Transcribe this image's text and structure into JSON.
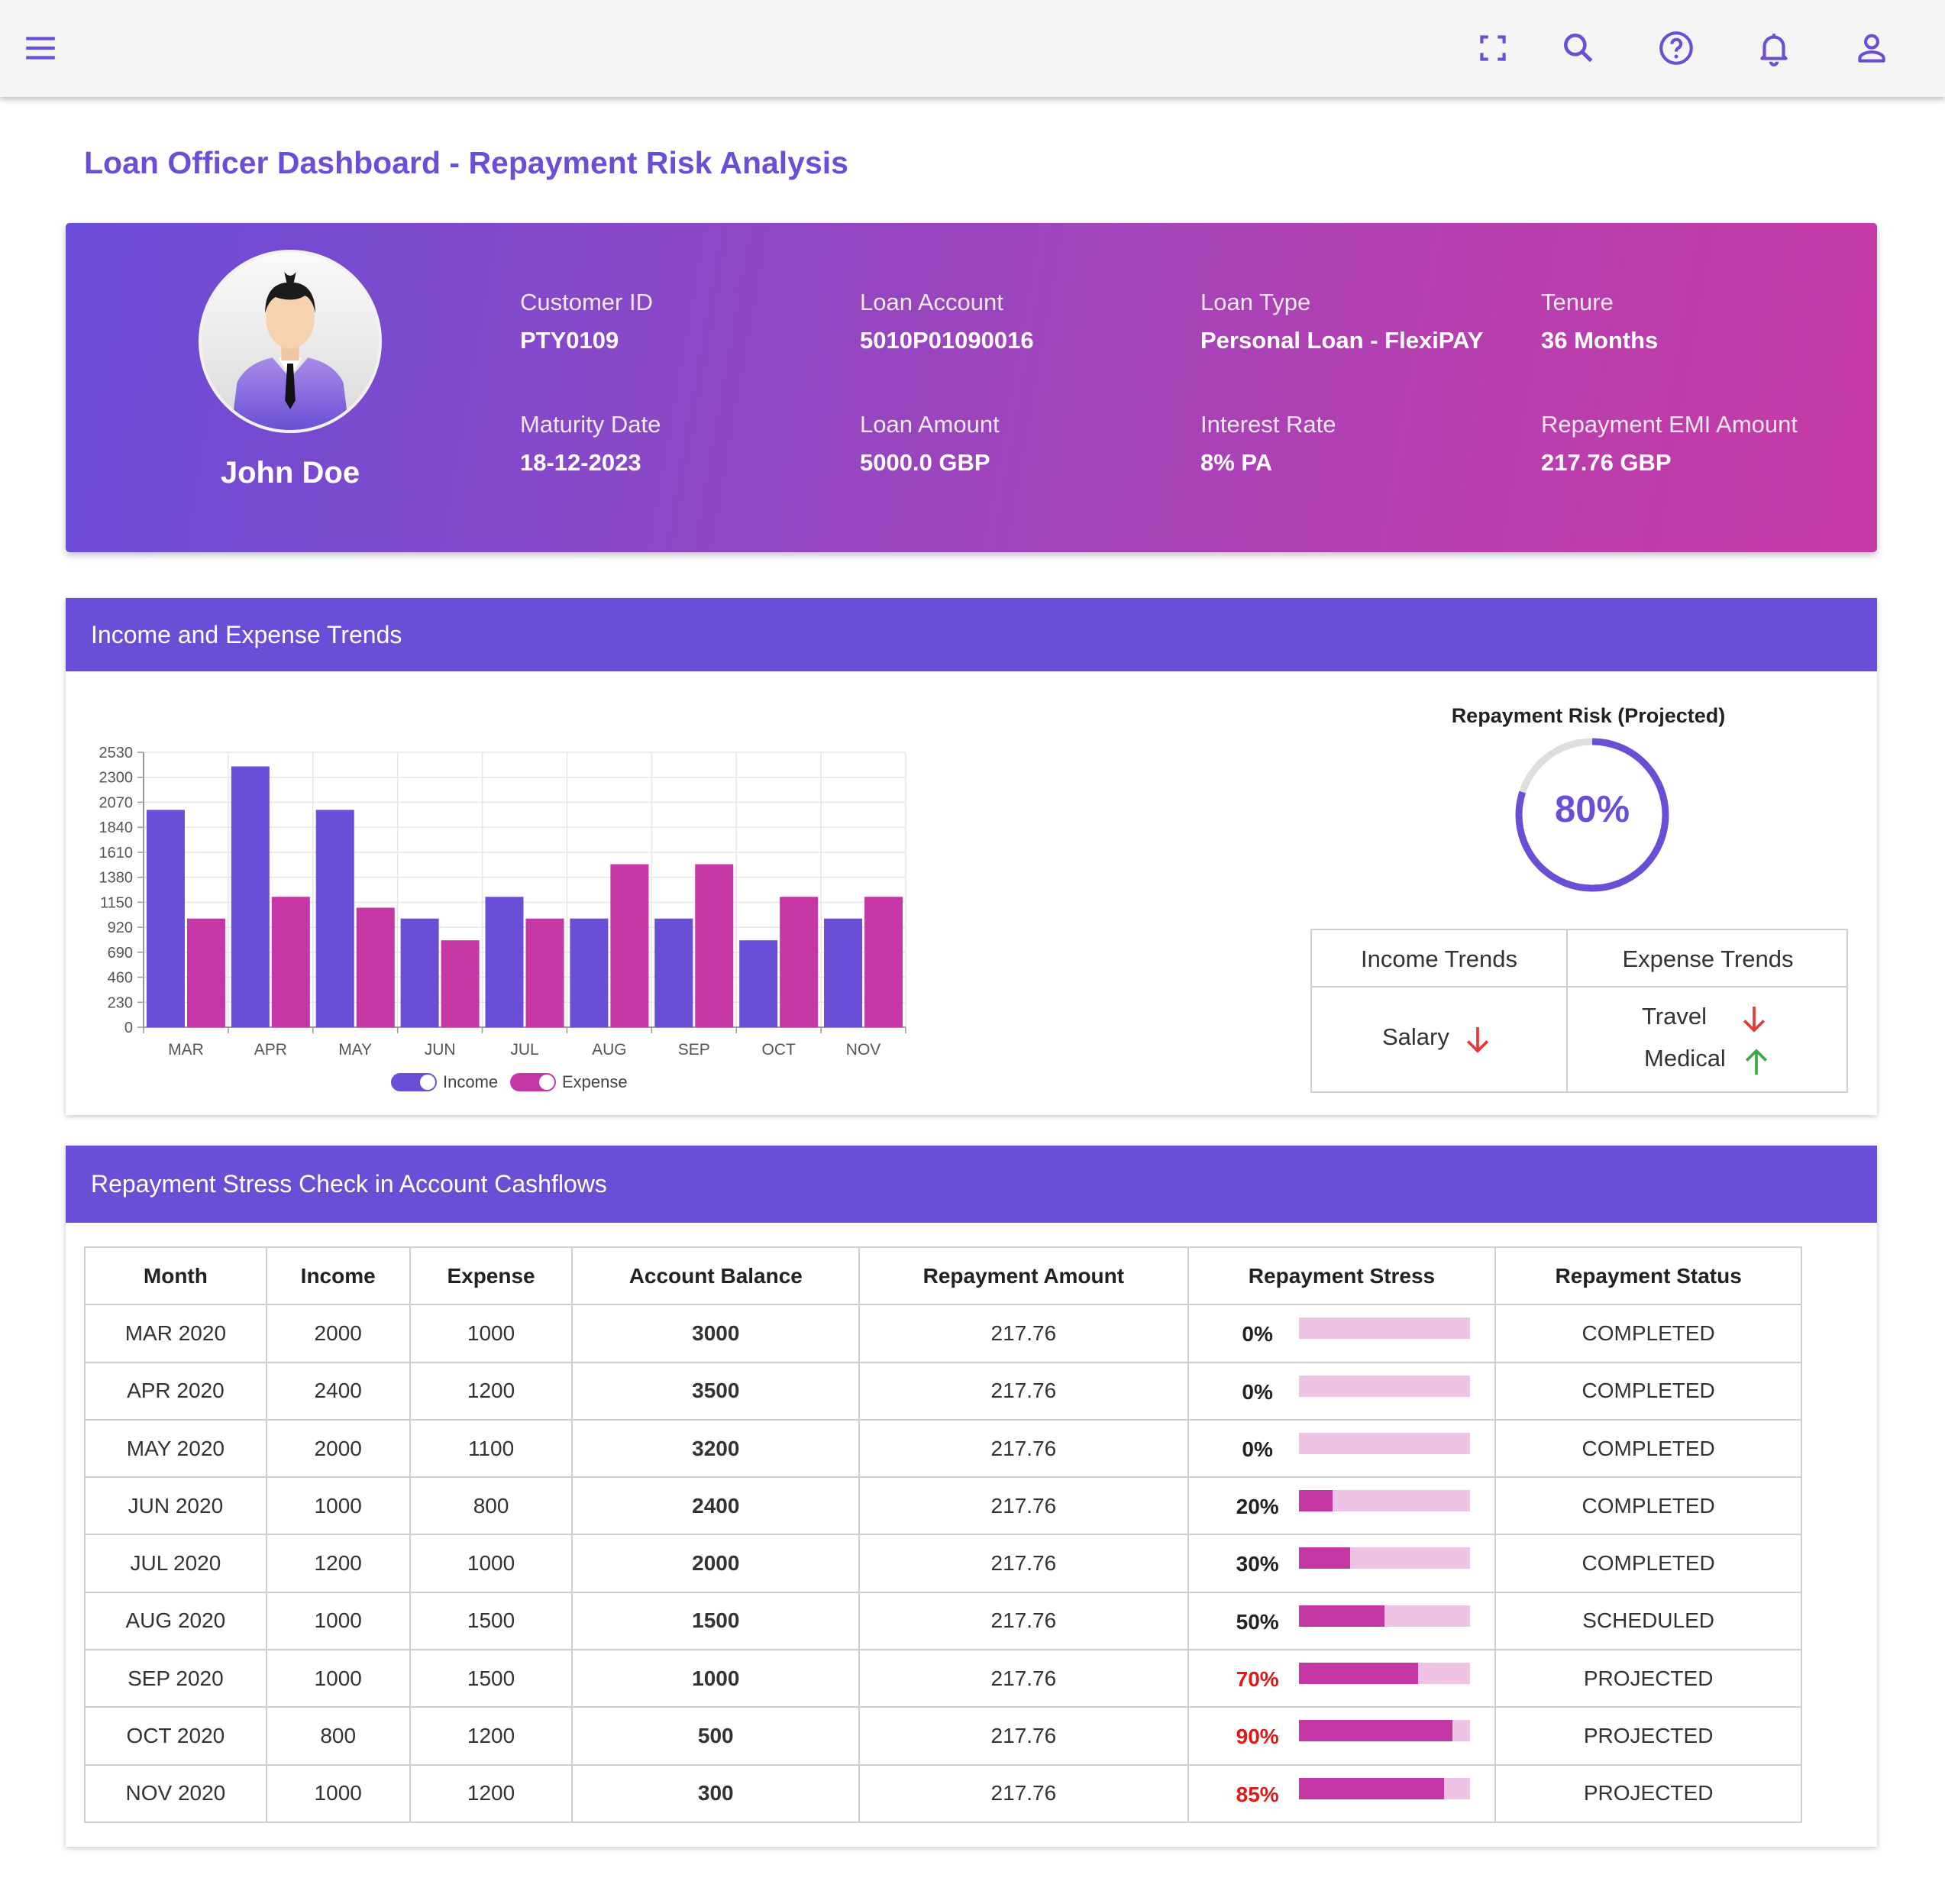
{
  "header": {
    "icons": [
      "menu-icon",
      "fullscreen-icon",
      "search-icon",
      "help-icon",
      "notifications-icon",
      "account-icon"
    ]
  },
  "page_title": "Loan Officer Dashboard - Repayment Risk Analysis",
  "profile": {
    "name": "John Doe",
    "fields": [
      {
        "label": "Customer ID",
        "value": "PTY0109"
      },
      {
        "label": "Loan Account",
        "value": "5010P01090016"
      },
      {
        "label": "Loan Type",
        "value": "Personal Loan - FlexiPAY"
      },
      {
        "label": "Tenure",
        "value": "36 Months"
      },
      {
        "label": "Maturity Date",
        "value": "18-12-2023"
      },
      {
        "label": "Loan Amount",
        "value": "5000.0 GBP"
      },
      {
        "label": "Interest Rate",
        "value": "8% PA"
      },
      {
        "label": "Repayment EMI Amount",
        "value": "217.76 GBP"
      }
    ]
  },
  "trends_card": {
    "title": "Income and Expense Trends",
    "risk": {
      "title": "Repayment Risk (Projected)",
      "value": 80,
      "label": "80%"
    },
    "trend_table": {
      "income_header": "Income Trends",
      "expense_header": "Expense Trends",
      "income_items": [
        {
          "label": "Salary",
          "direction": "down"
        }
      ],
      "expense_items": [
        {
          "label": "Travel",
          "direction": "down"
        },
        {
          "label": "Medical",
          "direction": "up"
        }
      ]
    }
  },
  "chart_data": {
    "type": "bar",
    "categories": [
      "MAR",
      "APR",
      "MAY",
      "JUN",
      "JUL",
      "AUG",
      "SEP",
      "OCT",
      "NOV"
    ],
    "series": [
      {
        "name": "Income",
        "color": "#6a4fd6",
        "values": [
          2000,
          2400,
          2000,
          1000,
          1200,
          1000,
          1000,
          800,
          1000
        ]
      },
      {
        "name": "Expense",
        "color": "#c537a4",
        "values": [
          1000,
          1200,
          1100,
          800,
          1000,
          1500,
          1500,
          1200,
          1200
        ]
      }
    ],
    "ylim": [
      0,
      2530
    ],
    "yticks": [
      0,
      230,
      460,
      690,
      920,
      1150,
      1380,
      1610,
      1840,
      2070,
      2300,
      2530
    ],
    "legend": "bottom",
    "grid": true
  },
  "stress_card": {
    "title": "Repayment Stress Check in Account Cashflows",
    "columns": [
      "Month",
      "Income",
      "Expense",
      "Account Balance",
      "Repayment Amount",
      "Repayment Stress",
      "Repayment Status"
    ],
    "rows": [
      {
        "month": "MAR 2020",
        "income": "2000",
        "expense": "1000",
        "balance": "3000",
        "repayment": "217.76",
        "stress": 0,
        "stress_label": "0%",
        "status": "COMPLETED"
      },
      {
        "month": "APR 2020",
        "income": "2400",
        "expense": "1200",
        "balance": "3500",
        "repayment": "217.76",
        "stress": 0,
        "stress_label": "0%",
        "status": "COMPLETED"
      },
      {
        "month": "MAY 2020",
        "income": "2000",
        "expense": "1100",
        "balance": "3200",
        "repayment": "217.76",
        "stress": 0,
        "stress_label": "0%",
        "status": "COMPLETED"
      },
      {
        "month": "JUN 2020",
        "income": "1000",
        "expense": "800",
        "balance": "2400",
        "repayment": "217.76",
        "stress": 20,
        "stress_label": "20%",
        "status": "COMPLETED"
      },
      {
        "month": "JUL 2020",
        "income": "1200",
        "expense": "1000",
        "balance": "2000",
        "repayment": "217.76",
        "stress": 30,
        "stress_label": "30%",
        "status": "COMPLETED"
      },
      {
        "month": "AUG 2020",
        "income": "1000",
        "expense": "1500",
        "balance": "1500",
        "repayment": "217.76",
        "stress": 50,
        "stress_label": "50%",
        "status": "SCHEDULED"
      },
      {
        "month": "SEP 2020",
        "income": "1000",
        "expense": "1500",
        "balance": "1000",
        "repayment": "217.76",
        "stress": 70,
        "stress_label": "70%",
        "status": "PROJECTED"
      },
      {
        "month": "OCT 2020",
        "income": "800",
        "expense": "1200",
        "balance": "500",
        "repayment": "217.76",
        "stress": 90,
        "stress_label": "90%",
        "status": "PROJECTED"
      },
      {
        "month": "NOV 2020",
        "income": "1000",
        "expense": "1200",
        "balance": "300",
        "repayment": "217.76",
        "stress": 85,
        "stress_label": "85%",
        "status": "PROJECTED"
      }
    ]
  }
}
